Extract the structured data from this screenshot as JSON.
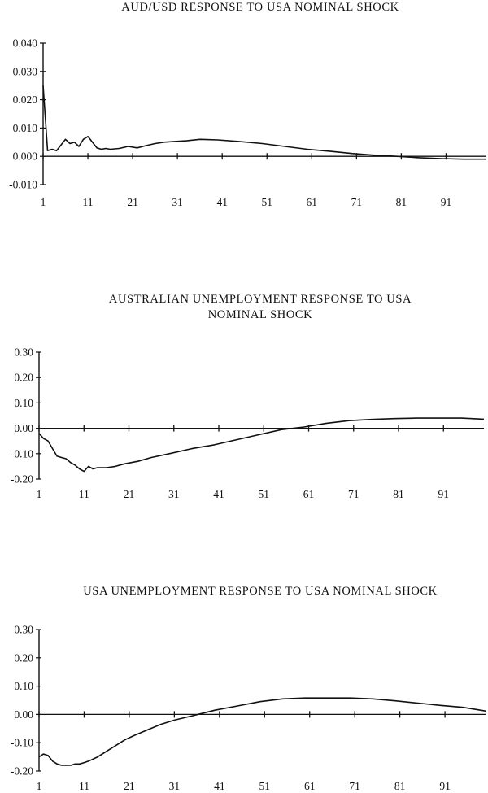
{
  "chart_data": [
    {
      "type": "line",
      "title": "AUD/USD RESPONSE TO USA NOMINAL SHOCK",
      "title_lines": [
        "AUD/USD RESPONSE TO USA NOMINAL SHOCK"
      ],
      "ylim": [
        -0.01,
        0.04
      ],
      "yticks": [
        -0.01,
        0.0,
        0.01,
        0.02,
        0.03,
        0.04
      ],
      "ytick_labels": [
        "-0.010",
        "0.000",
        "0.010",
        "0.020",
        "0.030",
        "0.040"
      ],
      "xlim": [
        1,
        100
      ],
      "xticks": [
        1,
        11,
        21,
        31,
        41,
        51,
        61,
        71,
        81,
        91
      ],
      "xtick_labels": [
        "1",
        "11",
        "21",
        "31",
        "41",
        "51",
        "61",
        "71",
        "81",
        "91"
      ],
      "series": [
        {
          "x": [
            1,
            2,
            3,
            4,
            5,
            6,
            7,
            8,
            9,
            10,
            11,
            12,
            13,
            14,
            15,
            16,
            18,
            20,
            22,
            24,
            26,
            28,
            30,
            33,
            36,
            40,
            45,
            50,
            55,
            60,
            65,
            70,
            75,
            80,
            85,
            90,
            95,
            100
          ],
          "y": [
            0.025,
            0.002,
            0.0025,
            0.002,
            0.004,
            0.006,
            0.0045,
            0.005,
            0.0035,
            0.006,
            0.007,
            0.005,
            0.003,
            0.0025,
            0.0028,
            0.0025,
            0.0028,
            0.0035,
            0.003,
            0.0038,
            0.0045,
            0.005,
            0.0052,
            0.0055,
            0.006,
            0.0058,
            0.0052,
            0.0045,
            0.0035,
            0.0025,
            0.0018,
            0.001,
            0.0004,
            0.0,
            -0.0005,
            -0.0008,
            -0.001,
            -0.001
          ]
        },
        {
          "x": [
            1,
            100
          ],
          "y": [
            0.0,
            0.0
          ]
        }
      ]
    },
    {
      "type": "line",
      "title": "AUSTRALIAN UNEMPLOYMENT RESPONSE TO USA NOMINAL SHOCK",
      "title_lines": [
        "AUSTRALIAN UNEMPLOYMENT RESPONSE TO USA",
        "NOMINAL SHOCK"
      ],
      "ylim": [
        -0.2,
        0.3
      ],
      "yticks": [
        -0.2,
        -0.1,
        0.0,
        0.1,
        0.2,
        0.3
      ],
      "ytick_labels": [
        "-0.20",
        "-0.10",
        "0.00",
        "0.10",
        "0.20",
        "0.30"
      ],
      "xlim": [
        1,
        100
      ],
      "xticks": [
        1,
        11,
        21,
        31,
        41,
        51,
        61,
        71,
        81,
        91
      ],
      "xtick_labels": [
        "1",
        "11",
        "21",
        "31",
        "41",
        "51",
        "61",
        "71",
        "81",
        "91"
      ],
      "series": [
        {
          "x": [
            1,
            2,
            3,
            4,
            5,
            6,
            7,
            8,
            9,
            10,
            11,
            12,
            13,
            14,
            16,
            18,
            20,
            23,
            26,
            30,
            35,
            40,
            45,
            50,
            55,
            60,
            65,
            70,
            75,
            80,
            85,
            90,
            95,
            100
          ],
          "y": [
            -0.02,
            -0.04,
            -0.05,
            -0.08,
            -0.11,
            -0.115,
            -0.12,
            -0.135,
            -0.145,
            -0.16,
            -0.17,
            -0.15,
            -0.16,
            -0.155,
            -0.155,
            -0.15,
            -0.14,
            -0.13,
            -0.115,
            -0.1,
            -0.08,
            -0.065,
            -0.045,
            -0.025,
            -0.005,
            0.005,
            0.02,
            0.03,
            0.035,
            0.038,
            0.04,
            0.04,
            0.04,
            0.036
          ]
        },
        {
          "x": [
            1,
            100
          ],
          "y": [
            0.0,
            0.0
          ]
        }
      ]
    },
    {
      "type": "line",
      "title": "USA UNEMPLOYMENT RESPONSE TO USA NOMINAL SHOCK",
      "title_lines": [
        "USA UNEMPLOYMENT RESPONSE TO USA NOMINAL SHOCK"
      ],
      "ylim": [
        -0.2,
        0.3
      ],
      "yticks": [
        -0.2,
        -0.1,
        0.0,
        0.1,
        0.2,
        0.3
      ],
      "ytick_labels": [
        "-0.20",
        "-0.10",
        "0.00",
        "0.10",
        "0.20",
        "0.30"
      ],
      "xlim": [
        1,
        100
      ],
      "xticks": [
        1,
        11,
        21,
        31,
        41,
        51,
        61,
        71,
        81,
        91
      ],
      "xtick_labels": [
        "1",
        "11",
        "21",
        "31",
        "41",
        "51",
        "61",
        "71",
        "81",
        "91"
      ],
      "series": [
        {
          "x": [
            1,
            2,
            3,
            4,
            5,
            6,
            7,
            8,
            9,
            10,
            11,
            12,
            14,
            16,
            18,
            20,
            22,
            25,
            28,
            31,
            35,
            40,
            45,
            50,
            55,
            60,
            65,
            70,
            75,
            80,
            85,
            90,
            95,
            100
          ],
          "y": [
            -0.15,
            -0.14,
            -0.145,
            -0.165,
            -0.175,
            -0.18,
            -0.18,
            -0.18,
            -0.175,
            -0.175,
            -0.17,
            -0.165,
            -0.15,
            -0.13,
            -0.11,
            -0.09,
            -0.075,
            -0.055,
            -0.035,
            -0.02,
            -0.005,
            0.015,
            0.03,
            0.045,
            0.055,
            0.058,
            0.058,
            0.058,
            0.055,
            0.048,
            0.04,
            0.032,
            0.025,
            0.012
          ]
        },
        {
          "x": [
            1,
            100
          ],
          "y": [
            0.0,
            0.0
          ]
        }
      ]
    }
  ]
}
